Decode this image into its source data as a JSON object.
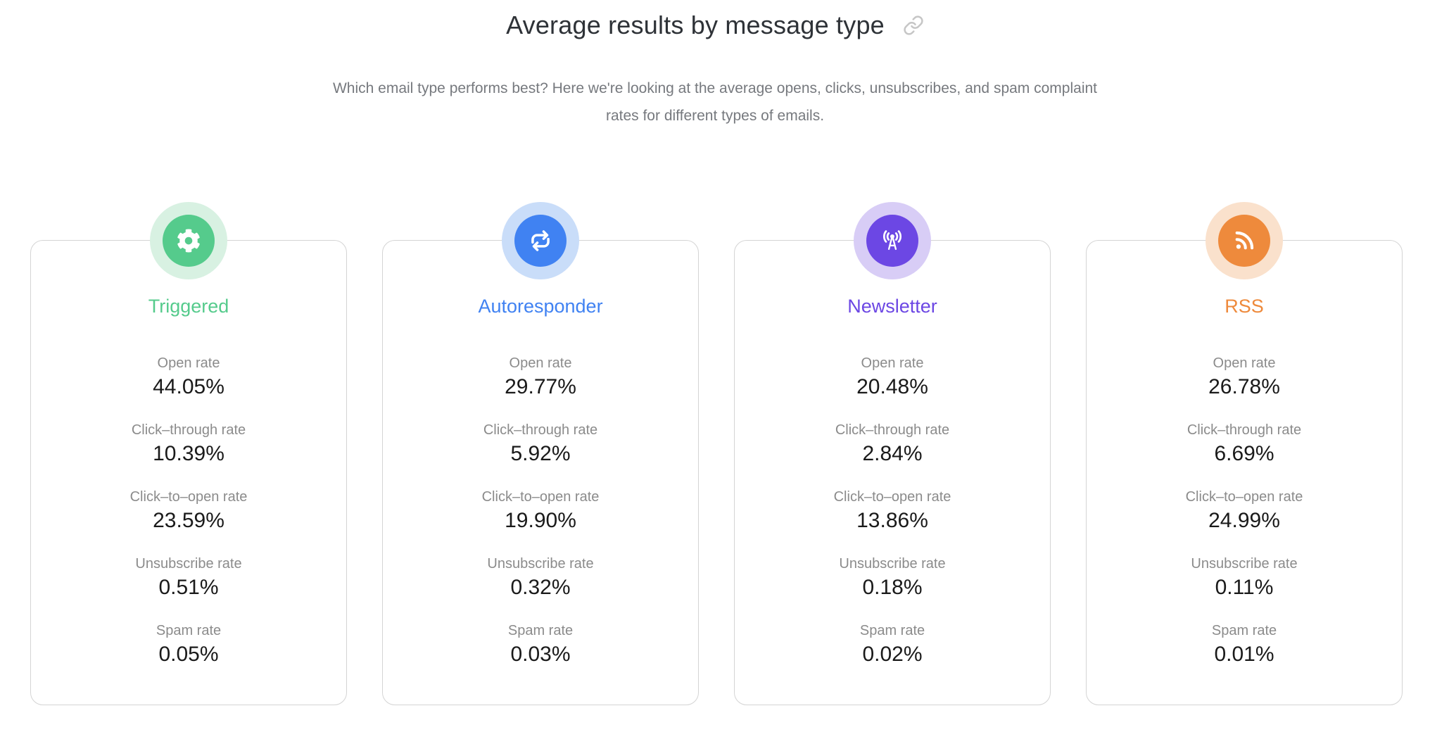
{
  "header": {
    "title": "Average results by message type",
    "link_icon": "link-icon",
    "subtitle": "Which email type performs best? Here we're looking at the average opens, clicks, unsubscribes, and spam complaint rates for different types of emails."
  },
  "colors": {
    "title_text": "#2e3237",
    "subtitle_text": "#76797e",
    "metric_label": "#8b8b8b",
    "metric_value": "#1a1a1a",
    "card_border": "#d4d4d4",
    "link_icon": "#c6c6c6"
  },
  "cards": [
    {
      "name": "Triggered",
      "icon": "gear-icon",
      "accent": "#55cb8c",
      "halo": "#d8f1e2",
      "metrics": [
        {
          "label": "Open rate",
          "value": "44.05%"
        },
        {
          "label": "Click–through rate",
          "value": "10.39%"
        },
        {
          "label": "Click–to–open rate",
          "value": "23.59%"
        },
        {
          "label": "Unsubscribe rate",
          "value": "0.51%"
        },
        {
          "label": "Spam rate",
          "value": "0.05%"
        }
      ]
    },
    {
      "name": "Autoresponder",
      "icon": "repeat-icon",
      "accent": "#4082f2",
      "halo": "#c9ddf9",
      "metrics": [
        {
          "label": "Open rate",
          "value": "29.77%"
        },
        {
          "label": "Click–through rate",
          "value": "5.92%"
        },
        {
          "label": "Click–to–open rate",
          "value": "19.90%"
        },
        {
          "label": "Unsubscribe rate",
          "value": "0.32%"
        },
        {
          "label": "Spam rate",
          "value": "0.03%"
        }
      ]
    },
    {
      "name": "Newsletter",
      "icon": "broadcast-icon",
      "accent": "#6c47e4",
      "halo": "#d8cdf6",
      "metrics": [
        {
          "label": "Open rate",
          "value": "20.48%"
        },
        {
          "label": "Click–through rate",
          "value": "2.84%"
        },
        {
          "label": "Click–to–open rate",
          "value": "13.86%"
        },
        {
          "label": "Unsubscribe rate",
          "value": "0.18%"
        },
        {
          "label": "Spam rate",
          "value": "0.02%"
        }
      ]
    },
    {
      "name": "RSS",
      "icon": "rss-icon",
      "accent": "#ee8a3c",
      "halo": "#fae1cc",
      "metrics": [
        {
          "label": "Open rate",
          "value": "26.78%"
        },
        {
          "label": "Click–through rate",
          "value": "6.69%"
        },
        {
          "label": "Click–to–open rate",
          "value": "24.99%"
        },
        {
          "label": "Unsubscribe rate",
          "value": "0.11%"
        },
        {
          "label": "Spam rate",
          "value": "0.01%"
        }
      ]
    }
  ],
  "chart_data": {
    "type": "table",
    "title": "Average results by message type",
    "subtitle": "Which email type performs best? Here we're looking at the average opens, clicks, unsubscribes, and spam complaint rates for different types of emails.",
    "categories": [
      "Triggered",
      "Autoresponder",
      "Newsletter",
      "RSS"
    ],
    "series": [
      {
        "name": "Open rate",
        "values": [
          44.05,
          29.77,
          20.48,
          26.78
        ]
      },
      {
        "name": "Click-through rate",
        "values": [
          10.39,
          5.92,
          2.84,
          6.69
        ]
      },
      {
        "name": "Click-to-open rate",
        "values": [
          23.59,
          19.9,
          13.86,
          24.99
        ]
      },
      {
        "name": "Unsubscribe rate",
        "values": [
          0.51,
          0.32,
          0.18,
          0.11
        ]
      },
      {
        "name": "Spam rate",
        "values": [
          0.05,
          0.03,
          0.02,
          0.01
        ]
      }
    ],
    "unit": "%"
  }
}
